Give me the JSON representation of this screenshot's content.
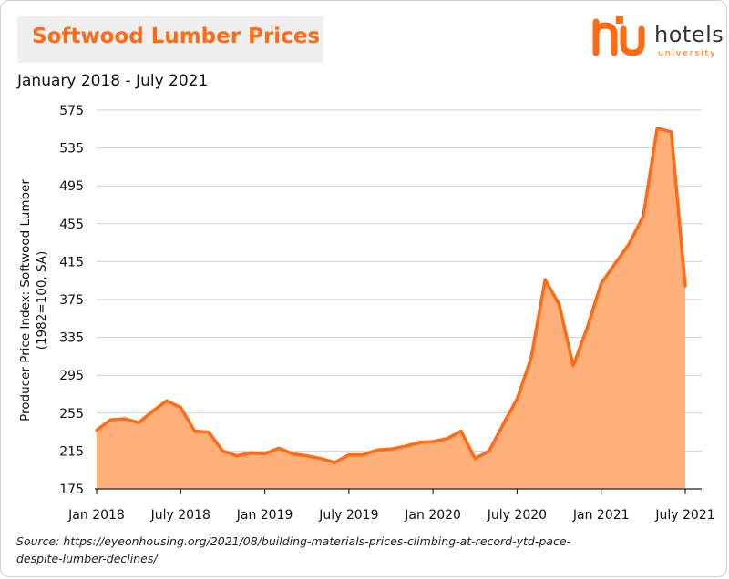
{
  "colors": {
    "accent": "#ff6a13",
    "area_fill": "#ffb07a",
    "line": "#ff6a13",
    "grid": "#cfcfcf",
    "title_bg": "#efefef"
  },
  "logo": {
    "word": "hotels",
    "sub": "university"
  },
  "source": {
    "text": "Source: https://eyeonhousing.org/2021/08/building-materials-prices-climbing-at-record-ytd-pace-despite-lumber-declines/"
  },
  "chart_data": {
    "type": "area",
    "title": "Softwood Lumber Prices",
    "subtitle": "January 2018 - July 2021",
    "ylabel_line1": "Producer Price Index: Softwood Lumber",
    "ylabel_line2": "(1982=100, SA)",
    "xlabel": "",
    "ylim": [
      175,
      575
    ],
    "yticks": [
      175,
      215,
      255,
      295,
      335,
      375,
      415,
      455,
      495,
      535,
      575
    ],
    "xtick_labels": [
      "Jan 2018",
      "July 2018",
      "Jan 2019",
      "July 2019",
      "Jan 2020",
      "July 2020",
      "Jan 2021",
      "July 2021"
    ],
    "xtick_months": [
      0,
      6,
      12,
      18,
      24,
      30,
      36,
      42
    ],
    "grid": true,
    "months": [
      "Jan 2018",
      "Feb 2018",
      "Mar 2018",
      "Apr 2018",
      "May 2018",
      "Jun 2018",
      "Jul 2018",
      "Aug 2018",
      "Sep 2018",
      "Oct 2018",
      "Nov 2018",
      "Dec 2018",
      "Jan 2019",
      "Feb 2019",
      "Mar 2019",
      "Apr 2019",
      "May 2019",
      "Jun 2019",
      "Jul 2019",
      "Aug 2019",
      "Sep 2019",
      "Oct 2019",
      "Nov 2019",
      "Dec 2019",
      "Jan 2020",
      "Feb 2020",
      "Mar 2020",
      "Apr 2020",
      "May 2020",
      "Jun 2020",
      "Jul 2020",
      "Aug 2020",
      "Sep 2020",
      "Oct 2020",
      "Nov 2020",
      "Dec 2020",
      "Jan 2021",
      "Feb 2021",
      "Mar 2021",
      "Apr 2021",
      "May 2021",
      "Jun 2021",
      "Jul 2021"
    ],
    "values": [
      237,
      248,
      249,
      245,
      257,
      268,
      261,
      236,
      235,
      215,
      210,
      213,
      212,
      218,
      212,
      210,
      207,
      203,
      211,
      211,
      216,
      217,
      220,
      224,
      225,
      228,
      236,
      207,
      215,
      243,
      270,
      313,
      396,
      370,
      305,
      345,
      392,
      413,
      434,
      463,
      556,
      552,
      389
    ]
  }
}
